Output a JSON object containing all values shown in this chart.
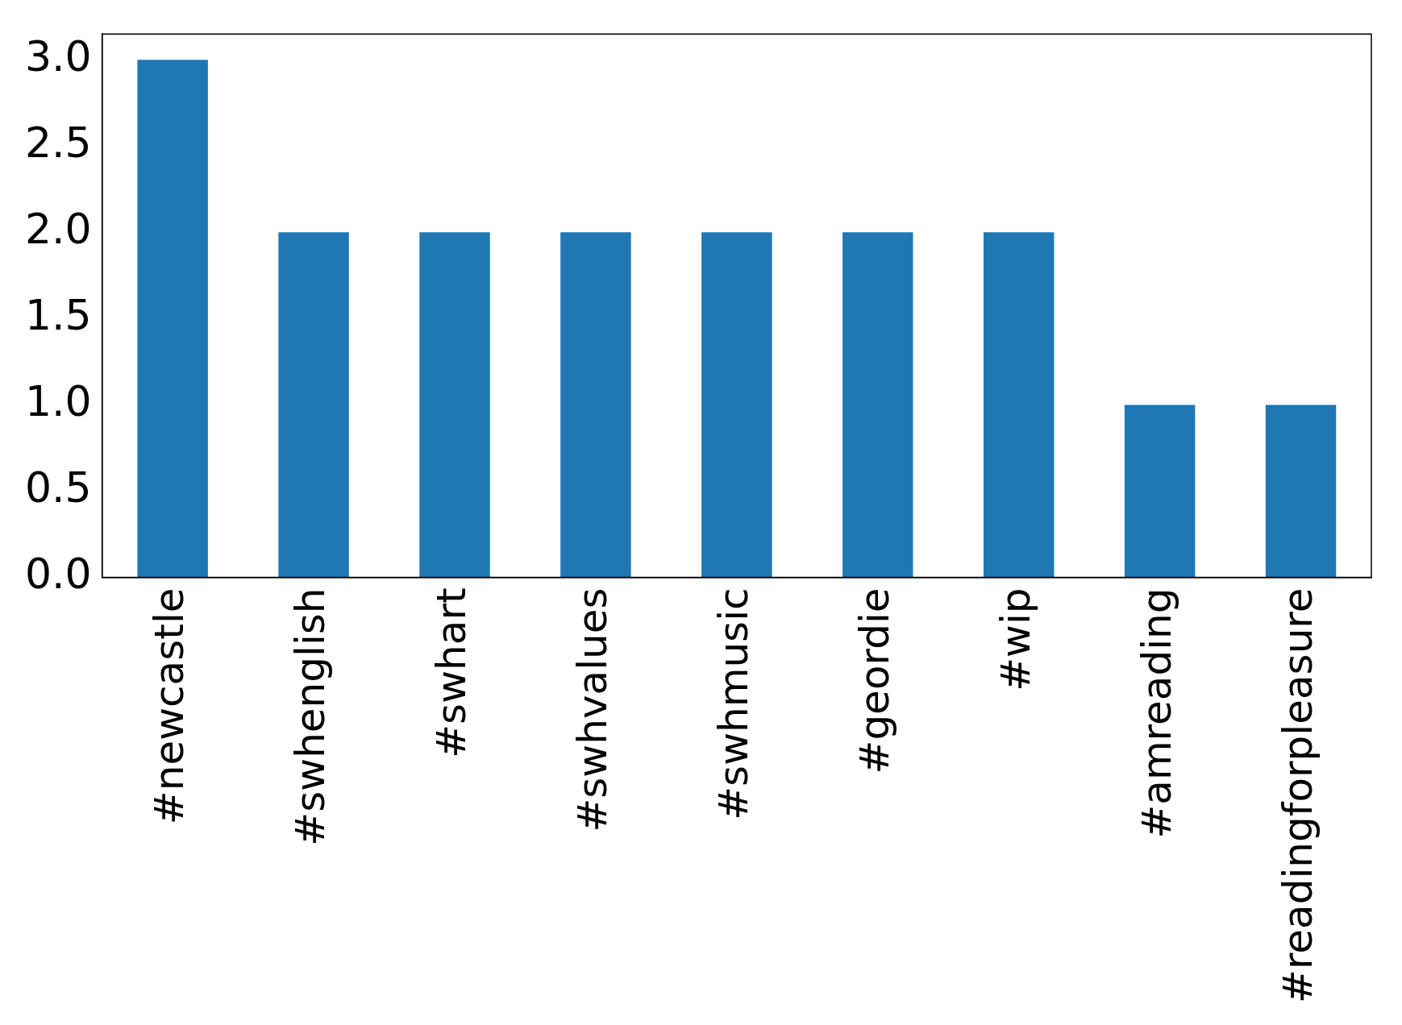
{
  "chart_data": {
    "type": "bar",
    "categories": [
      "#newcastle",
      "#swhenglish",
      "#swhart",
      "#swhvalues",
      "#swhmusic",
      "#geordie",
      "#wip",
      "#amreading",
      "#readingforpleasure"
    ],
    "values": [
      3,
      2,
      2,
      2,
      2,
      2,
      2,
      1,
      1
    ],
    "color": "#1f77b4",
    "ylim": [
      0,
      3.15
    ],
    "yticks": [
      {
        "value": 0,
        "label": "0.0"
      },
      {
        "value": 0.5,
        "label": "0.5"
      },
      {
        "value": 1,
        "label": "1.0"
      },
      {
        "value": 1.5,
        "label": "1.5"
      },
      {
        "value": 2,
        "label": "2.0"
      },
      {
        "value": 2.5,
        "label": "2.5"
      },
      {
        "value": 3,
        "label": "3.0"
      }
    ],
    "grid": false,
    "legend": false
  }
}
